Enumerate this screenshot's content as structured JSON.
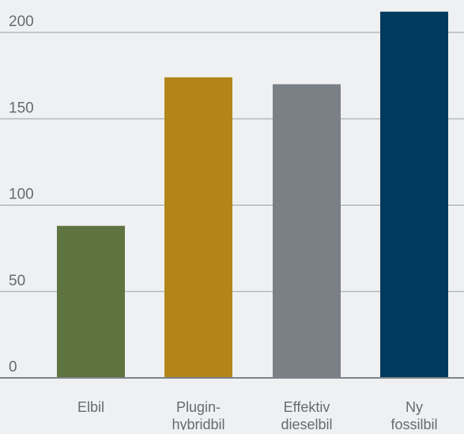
{
  "chart_data": {
    "type": "bar",
    "title": "",
    "xlabel": "",
    "ylabel": "",
    "ylim": [
      0,
      200
    ],
    "yticks": [
      0,
      50,
      100,
      150,
      200
    ],
    "grid": true,
    "categories": [
      {
        "lines": [
          "Elbil"
        ]
      },
      {
        "lines": [
          "Plugin-",
          "hybridbil"
        ]
      },
      {
        "lines": [
          "Effektiv",
          "dieselbil"
        ]
      },
      {
        "lines": [
          "Ny",
          "fossilbil"
        ]
      }
    ],
    "values": [
      88,
      174,
      170,
      212
    ],
    "colors": [
      "#5d7440",
      "#b38519",
      "#7a8086",
      "#003a5d"
    ]
  },
  "style": {
    "background": "#eef0f1",
    "gridline_color": "#9aa0a6",
    "baseline_color": "#7c8288",
    "text_color": "#666b70"
  }
}
